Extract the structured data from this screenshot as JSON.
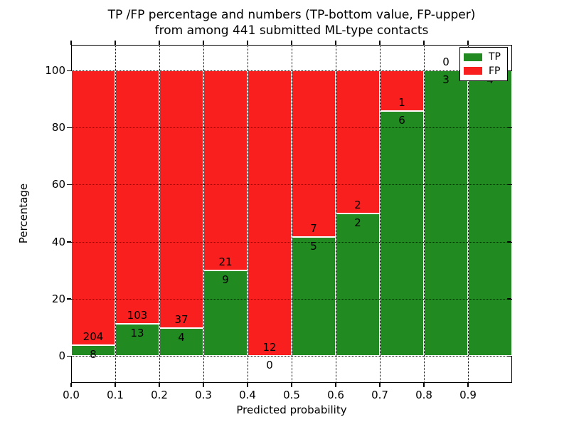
{
  "chart_data": {
    "type": "bar",
    "variant": "stacked_percentage_histogram",
    "title_line1": "TP /FP percentage and numbers (TP-bottom value, FP-upper)",
    "title_line2": "from among 441 submitted ML-type contacts",
    "xlabel": "Predicted probability",
    "ylabel": "Percentage",
    "x_tick_labels": [
      "0.0",
      "0.1",
      "0.2",
      "0.3",
      "0.4",
      "0.5",
      "0.6",
      "0.7",
      "0.8",
      "0.9"
    ],
    "y_ticks": [
      0,
      20,
      40,
      60,
      80,
      100
    ],
    "xlim": [
      0.0,
      1.0
    ],
    "ylim": [
      -9.5,
      109.5
    ],
    "grid": "dotted, both axes, drawn over bars",
    "total_contacts": 441,
    "colors": {
      "tp": "#218a21",
      "fp": "#fa1f1f",
      "bar_edge": "#ffffff",
      "text": "#000000"
    },
    "legend": {
      "position": "upper right",
      "entries": [
        {
          "label": "TP",
          "color": "#218a21"
        },
        {
          "label": "FP",
          "color": "#fa1f1f"
        }
      ]
    },
    "bins": [
      {
        "x_start": 0.0,
        "x_end": 0.1,
        "tp": 8,
        "fp": 204
      },
      {
        "x_start": 0.1,
        "x_end": 0.2,
        "tp": 13,
        "fp": 103
      },
      {
        "x_start": 0.2,
        "x_end": 0.3,
        "tp": 4,
        "fp": 37
      },
      {
        "x_start": 0.3,
        "x_end": 0.4,
        "tp": 9,
        "fp": 21
      },
      {
        "x_start": 0.4,
        "x_end": 0.5,
        "tp": 0,
        "fp": 12
      },
      {
        "x_start": 0.5,
        "x_end": 0.6,
        "tp": 5,
        "fp": 7
      },
      {
        "x_start": 0.6,
        "x_end": 0.7,
        "tp": 2,
        "fp": 2
      },
      {
        "x_start": 0.7,
        "x_end": 0.8,
        "tp": 6,
        "fp": 1
      },
      {
        "x_start": 0.8,
        "x_end": 0.9,
        "tp": 3,
        "fp": 0
      },
      {
        "x_start": 0.9,
        "x_end": 1.0,
        "tp": 4,
        "fp": 0
      }
    ]
  }
}
